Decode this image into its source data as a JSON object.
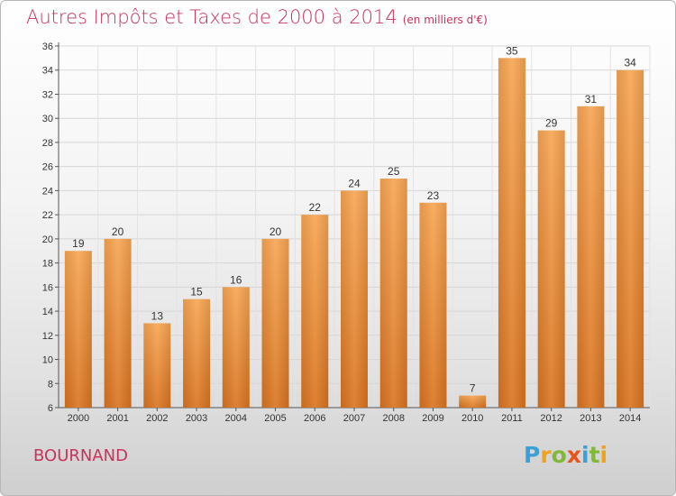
{
  "header": {
    "title": "Autres Impôts et Taxes de 2000 à 2014",
    "unit": "(en milliers d'€)"
  },
  "footer": {
    "commune": "BOURNAND",
    "logo_letters": [
      {
        "ch": "P",
        "color": "#3aa0d8"
      },
      {
        "ch": "r",
        "color": "#f0a21c"
      },
      {
        "ch": "o",
        "color": "#82b83a"
      },
      {
        "ch": "x",
        "color": "#e8541a"
      },
      {
        "ch": "i",
        "color": "#3aa0d8"
      },
      {
        "ch": "t",
        "color": "#82b83a"
      },
      {
        "ch": "i",
        "color": "#f0a21c"
      }
    ]
  },
  "chart_data": {
    "type": "bar",
    "title": "Autres Impôts et Taxes de 2000 à 2014",
    "categories": [
      "2000",
      "2001",
      "2002",
      "2003",
      "2004",
      "2005",
      "2006",
      "2007",
      "2008",
      "2009",
      "2010",
      "2011",
      "2012",
      "2013",
      "2014"
    ],
    "values": [
      19,
      20,
      13,
      15,
      16,
      20,
      22,
      24,
      25,
      23,
      7,
      35,
      29,
      31,
      34
    ],
    "ylim": [
      6,
      36
    ],
    "yticks": [
      6,
      8,
      10,
      12,
      14,
      16,
      18,
      20,
      22,
      24,
      26,
      28,
      30,
      32,
      34,
      36
    ],
    "grid": true,
    "bar_color_light": "#f7a552",
    "bar_color_dark": "#d9731f",
    "xlabel": "",
    "ylabel": ""
  }
}
